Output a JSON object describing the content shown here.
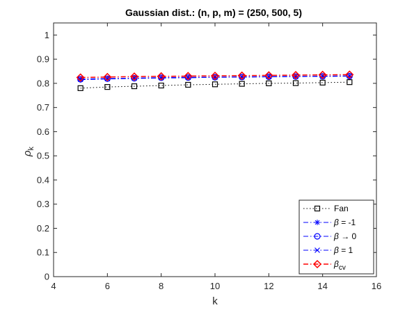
{
  "chart_data": {
    "type": "line",
    "title": "Gaussian dist.: (n, p, m) = (250, 500, 5)",
    "xlabel": "k",
    "ylabel": "ρ",
    "ylabel_sub": "k",
    "xlim": [
      4,
      16
    ],
    "ylim": [
      0,
      1.05
    ],
    "xticks": [
      4,
      6,
      8,
      10,
      12,
      14,
      16
    ],
    "yticks": [
      0,
      0.1,
      0.2,
      0.3,
      0.4,
      0.5,
      0.6,
      0.7,
      0.8,
      0.9,
      1
    ],
    "ytick_labels": [
      "0",
      "0.1",
      "0.2",
      "0.3",
      "0.4",
      "0.5",
      "0.6",
      "0.7",
      "0.8",
      "0.9",
      "1"
    ],
    "grid": false,
    "legend_position": "bottom-right",
    "x": [
      5,
      6,
      7,
      8,
      9,
      10,
      11,
      12,
      13,
      14,
      15
    ],
    "series": [
      {
        "name": "Fan",
        "values": [
          0.78,
          0.785,
          0.788,
          0.791,
          0.794,
          0.796,
          0.798,
          0.8,
          0.801,
          0.803,
          0.805
        ],
        "color": "#000000",
        "marker": "square",
        "dash": "dotted",
        "legend": {
          "main": "Fan",
          "beta": false
        }
      },
      {
        "name": "β = -1",
        "values": [
          0.815,
          0.818,
          0.82,
          0.822,
          0.823,
          0.825,
          0.826,
          0.827,
          0.828,
          0.829,
          0.83
        ],
        "color": "#0000ff",
        "marker": "asterisk",
        "dash": "dashdot",
        "legend": {
          "beta": true,
          "rest": " = -1",
          "sub": ""
        }
      },
      {
        "name": "β → 0",
        "values": [
          0.817,
          0.819,
          0.821,
          0.823,
          0.824,
          0.825,
          0.826,
          0.827,
          0.828,
          0.829,
          0.83
        ],
        "color": "#0000ff",
        "marker": "circle",
        "dash": "dashdot",
        "legend": {
          "beta": true,
          "rest": " → 0",
          "sub": ""
        }
      },
      {
        "name": "β = 1",
        "values": [
          0.818,
          0.82,
          0.822,
          0.824,
          0.825,
          0.826,
          0.827,
          0.828,
          0.829,
          0.83,
          0.831
        ],
        "color": "#0000ff",
        "marker": "x",
        "dash": "dashdot",
        "legend": {
          "beta": true,
          "rest": " = 1",
          "sub": ""
        }
      },
      {
        "name": "β_cv",
        "values": [
          0.824,
          0.826,
          0.828,
          0.829,
          0.83,
          0.831,
          0.832,
          0.833,
          0.834,
          0.835,
          0.836
        ],
        "color": "#ff0000",
        "marker": "diamond",
        "dash": "dashdot",
        "legend": {
          "beta": true,
          "rest": "",
          "sub": "cv"
        }
      }
    ]
  }
}
